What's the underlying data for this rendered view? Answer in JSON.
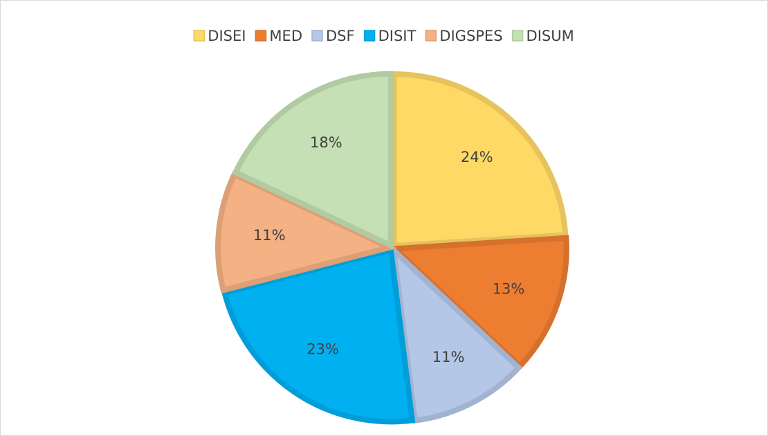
{
  "chart_data": {
    "type": "pie",
    "categories": [
      "DISEI",
      "MED",
      "DSF",
      "DISIT",
      "DIGSPES",
      "DISUM"
    ],
    "values": [
      24,
      13,
      11,
      23,
      11,
      18
    ],
    "value_labels": [
      "24%",
      "13%",
      "11%",
      "23%",
      "11%",
      "18%"
    ],
    "colors": [
      "#ffd966",
      "#ed7d31",
      "#b4c7e7",
      "#00b0f0",
      "#f4b183",
      "#c5e0b4"
    ],
    "legend": "top"
  }
}
